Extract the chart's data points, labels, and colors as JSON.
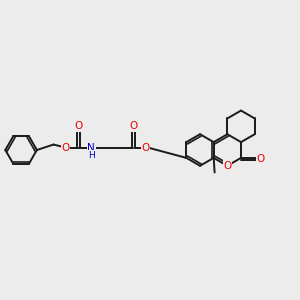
{
  "bg": "#ececec",
  "bc": "#1a1a1a",
  "oc": "#ee0000",
  "nc": "#0000cc",
  "lw": 1.4,
  "r": 0.052,
  "figsize": [
    3.0,
    3.0
  ],
  "dpi": 100,
  "ylim": [
    0.25,
    0.75
  ],
  "xlim": [
    0.01,
    0.99
  ]
}
